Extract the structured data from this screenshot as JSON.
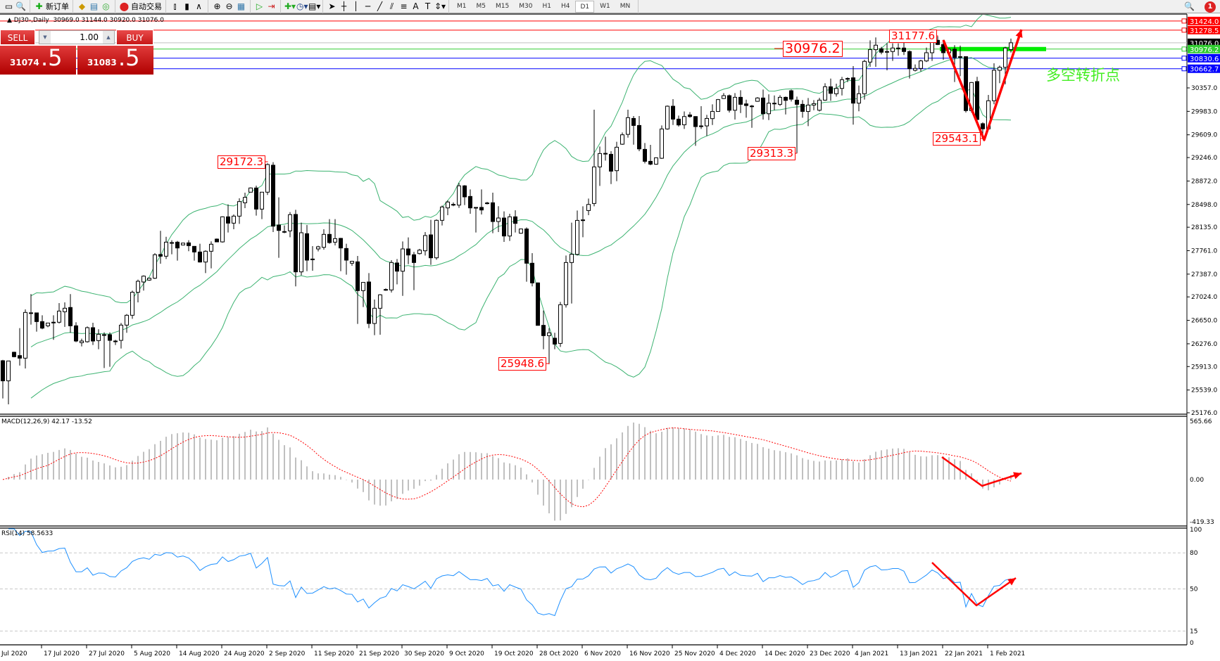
{
  "toolbar": {
    "new_order": "新订单",
    "auto_trading": "自动交易",
    "timeframes": [
      "M1",
      "M5",
      "M15",
      "M30",
      "H1",
      "H4",
      "D1",
      "W1",
      "MN"
    ],
    "active_timeframe": "D1",
    "notification_count": "1"
  },
  "header": {
    "symbol": "DJ30-,Daily",
    "open": "30969.0",
    "high": "31144.0",
    "low": "30920.0",
    "close": "31076.0"
  },
  "trade_panel": {
    "sell_label": "SELL",
    "buy_label": "BUY",
    "lot": "1.00",
    "sell_price_main": "31074",
    "sell_price_pip": ".5",
    "buy_price_main": "31083",
    "buy_price_pip": ".5"
  },
  "annotations": {
    "label_29172": "29172.3",
    "label_25948": "25948.6",
    "label_30976": "30976.2",
    "label_31177": "31177.6",
    "label_29313": "29313.3",
    "label_29543": "29543.1",
    "turning_point_text": "多空转折点"
  },
  "price_lines": [
    {
      "value": "31424.0",
      "color": "#ff0000"
    },
    {
      "value": "31278.5",
      "color": "#ff0000"
    },
    {
      "value": "31076.0",
      "color": "#c0c0c0",
      "tag": "#000000"
    },
    {
      "value": "30976.2",
      "color": "#32cd32"
    },
    {
      "value": "30830.6",
      "color": "#0000ff"
    },
    {
      "value": "30662.7",
      "color": "#0000ff"
    }
  ],
  "macd": {
    "title": "MACD(12,26,9) 42.17 -13.52",
    "axis": [
      "565.66",
      "0.00",
      "-419.33"
    ]
  },
  "rsi": {
    "title": "RSI(14) 58.5633",
    "axis": [
      "100",
      "80",
      "50",
      "15",
      "0"
    ]
  },
  "chart_data": {
    "type": "candlestick",
    "symbol": "DJ30-",
    "timeframe": "Daily",
    "y_ticks": [
      "30357.0",
      "29983.0",
      "29609.0",
      "29246.0",
      "28872.0",
      "28498.0",
      "28135.0",
      "27761.0",
      "27387.0",
      "27024.0",
      "26650.0",
      "26276.0",
      "25913.0",
      "25539.0",
      "25176.0"
    ],
    "x_ticks": [
      "Jul 2020",
      "17 Jul 2020",
      "27 Jul 2020",
      "5 Aug 2020",
      "14 Aug 2020",
      "24 Aug 2020",
      "2 Sep 2020",
      "11 Sep 2020",
      "21 Sep 2020",
      "30 Sep 2020",
      "9 Oct 2020",
      "19 Oct 2020",
      "28 Oct 2020",
      "6 Nov 2020",
      "16 Nov 2020",
      "25 Nov 2020",
      "4 Dec 2020",
      "14 Dec 2020",
      "23 Dec 2020",
      "4 Jan 2021",
      "13 Jan 2021",
      "22 Jan 2021",
      "1 Feb 2021"
    ],
    "indicators": [
      "Bollinger Bands(20,2)",
      "MACD(12,26,9)",
      "RSI(14)"
    ],
    "colors": {
      "bands": "#3cb371",
      "macd_hist": "#c0c0c0",
      "macd_signal": "#ff0000",
      "rsi": "#1e90ff",
      "annotation": "#ff0000"
    },
    "candles_ohlc": [
      [
        26006,
        26020,
        25404,
        25685
      ],
      [
        25685,
        26002,
        25311,
        26002
      ],
      [
        26141,
        26150,
        26060,
        26070
      ],
      [
        26088,
        26526,
        25928,
        26047
      ],
      [
        26047,
        26825,
        25883,
        26776
      ],
      [
        26770,
        27068,
        26582,
        26770
      ],
      [
        26769,
        26769,
        26470,
        26630
      ],
      [
        26630,
        26731,
        26507,
        26526
      ],
      [
        26563,
        26610,
        26540,
        26607
      ],
      [
        26620,
        26731,
        26339,
        26620
      ],
      [
        26620,
        26925,
        26600,
        26798
      ],
      [
        26787,
        26937,
        26545,
        26843
      ],
      [
        26855,
        27068,
        26451,
        26563
      ],
      [
        26563,
        26620,
        26301,
        26320
      ],
      [
        26294,
        26357,
        26234,
        26320
      ],
      [
        26309,
        26552,
        26294,
        26533
      ],
      [
        26533,
        26612,
        26256,
        26320
      ],
      [
        26327,
        26507,
        26189,
        26428
      ],
      [
        26421,
        26458,
        25890,
        26421
      ],
      [
        26421,
        26458,
        25909,
        26331
      ],
      [
        26320,
        26339,
        26256,
        26320
      ],
      [
        26331,
        26608,
        26200,
        26574
      ],
      [
        26574,
        26750,
        26451,
        26731
      ],
      [
        26731,
        27124,
        26675,
        27098
      ],
      [
        27098,
        27299,
        26937,
        27273
      ],
      [
        27262,
        27367,
        27124,
        27355
      ],
      [
        27292,
        27330,
        27280,
        27322
      ],
      [
        27322,
        27722,
        27310,
        27696
      ],
      [
        27700,
        28077,
        27554,
        27673
      ],
      [
        27673,
        27983,
        27628,
        27897
      ],
      [
        27890,
        27927,
        27703,
        27890
      ],
      [
        27897,
        27916,
        27602,
        27804
      ],
      [
        27852,
        27890,
        27845,
        27882
      ],
      [
        27886,
        27927,
        27752,
        27841
      ],
      [
        27830,
        27835,
        27602,
        27740
      ],
      [
        27740,
        27871,
        27572,
        27580
      ],
      [
        27580,
        27767,
        27404,
        27752
      ],
      [
        27752,
        27909,
        27479,
        27864
      ],
      [
        27946,
        27955,
        27895,
        27901
      ],
      [
        27901,
        28309,
        27890,
        28301
      ],
      [
        28301,
        28499,
        28051,
        28200
      ],
      [
        28200,
        28338,
        28103,
        28312
      ],
      [
        28312,
        28596,
        28189,
        28544
      ],
      [
        28525,
        28686,
        28439,
        28611
      ],
      [
        28694,
        28770,
        28690,
        28761
      ],
      [
        28761,
        28798,
        28320,
        28424
      ],
      [
        28424,
        28694,
        28264,
        28694
      ],
      [
        28694,
        29154,
        28649,
        29135
      ],
      [
        29124,
        29172,
        28058,
        28152
      ],
      [
        28170,
        28612,
        27647,
        28084
      ],
      [
        28066,
        28163,
        28040,
        28066
      ],
      [
        28077,
        28376,
        27976,
        28335
      ],
      [
        28339,
        28413,
        27191,
        27423
      ],
      [
        27423,
        28208,
        27367,
        28047
      ],
      [
        28032,
        28170,
        27434,
        27610
      ],
      [
        27628,
        27834,
        27441,
        27628
      ],
      [
        27789,
        27840,
        27750,
        27823
      ],
      [
        27815,
        28103,
        27778,
        28021
      ],
      [
        28021,
        28264,
        27871,
        27890
      ],
      [
        27897,
        28264,
        27845,
        27953
      ],
      [
        27957,
        27965,
        27434,
        27804
      ],
      [
        27796,
        27871,
        27378,
        27610
      ],
      [
        27561,
        27600,
        27520,
        27591
      ],
      [
        27583,
        27677,
        26593,
        27124
      ],
      [
        27124,
        27260,
        26862,
        27255
      ],
      [
        27262,
        27404,
        26526,
        26600
      ],
      [
        26600,
        26982,
        26413,
        26843
      ],
      [
        26843,
        27068,
        26421,
        27057
      ],
      [
        27142,
        27160,
        27120,
        27142
      ],
      [
        27135,
        27610,
        27094,
        27572
      ],
      [
        27565,
        27628,
        27224,
        27434
      ],
      [
        27434,
        27908,
        27041,
        27789
      ],
      [
        27789,
        27972,
        27546,
        27692
      ],
      [
        27696,
        27741,
        27131,
        27572
      ],
      [
        27714,
        27790,
        27700,
        27770
      ],
      [
        27759,
        28058,
        27684,
        28002
      ],
      [
        28013,
        28253,
        27535,
        27647
      ],
      [
        27647,
        28260,
        27617,
        28245
      ],
      [
        28245,
        28480,
        28163,
        28458
      ],
      [
        28443,
        28563,
        28327,
        28537
      ],
      [
        28499,
        28530,
        28470,
        28499
      ],
      [
        28488,
        28843,
        28443,
        28795
      ],
      [
        28795,
        28806,
        28488,
        28619
      ],
      [
        28626,
        28738,
        28350,
        28443
      ],
      [
        28451,
        28455,
        28051,
        28451
      ],
      [
        28451,
        28738,
        28338,
        28410
      ],
      [
        28522,
        28540,
        28500,
        28522
      ],
      [
        28525,
        28686,
        28040,
        28226
      ],
      [
        28226,
        28470,
        28058,
        28282
      ],
      [
        28282,
        28387,
        27901,
        27995
      ],
      [
        27995,
        28350,
        27916,
        28301
      ],
      [
        28301,
        28406,
        28051,
        28196
      ],
      [
        28040,
        28115,
        28030,
        28107
      ],
      [
        28107,
        28133,
        27266,
        27561
      ],
      [
        27561,
        27722,
        27191,
        27247
      ],
      [
        27247,
        27255,
        26565,
        26570
      ],
      [
        26570,
        26806,
        26189,
        26406
      ],
      [
        26406,
        26526,
        25949,
        26451
      ],
      [
        26365,
        26451,
        26189,
        26271
      ],
      [
        26282,
        26944,
        26226,
        26899
      ],
      [
        26899,
        27684,
        26854,
        27572
      ],
      [
        27572,
        28208,
        26918,
        27703
      ],
      [
        27702,
        28401,
        27684,
        28244
      ],
      [
        28252,
        28469,
        27975,
        28252
      ],
      [
        28401,
        28592,
        28327,
        28498
      ],
      [
        28514,
        30009,
        28469,
        29097
      ],
      [
        29097,
        29422,
        28794,
        29310
      ],
      [
        29313,
        29579,
        29198,
        29313
      ],
      [
        29298,
        29347,
        28824,
        29029
      ],
      [
        29037,
        29497,
        28869,
        29411
      ],
      [
        29459,
        29646,
        29448,
        29609
      ],
      [
        29616,
        30009,
        29564,
        29882
      ],
      [
        29870,
        29908,
        29452,
        29758
      ],
      [
        29758,
        29908,
        29347,
        29384
      ],
      [
        29377,
        29478,
        29153,
        29186
      ],
      [
        29186,
        29448,
        29123,
        29141
      ],
      [
        29141,
        29250,
        29130,
        29242
      ],
      [
        29235,
        29758,
        29224,
        29702
      ],
      [
        29702,
        30076,
        29690,
        30065
      ],
      [
        30065,
        30177,
        29766,
        29859
      ],
      [
        29859,
        29915,
        29740,
        29766
      ],
      [
        29769,
        29982,
        29702,
        29900
      ],
      [
        29926,
        29971,
        29882,
        29900
      ],
      [
        29900,
        29905,
        29433,
        29740
      ],
      [
        29751,
        30065,
        29702,
        29751
      ],
      [
        29751,
        29926,
        29590,
        29870
      ],
      [
        29867,
        30095,
        29766,
        29982
      ],
      [
        29982,
        30180,
        29975,
        30170
      ],
      [
        30188,
        30274,
        30180,
        30233
      ],
      [
        30233,
        30252,
        29964,
        30001
      ],
      [
        30001,
        30274,
        29852,
        30207
      ],
      [
        30207,
        30319,
        29956,
        30095
      ],
      [
        30102,
        30169,
        29882,
        30076
      ],
      [
        30068,
        30085,
        29721,
        30068
      ],
      [
        30143,
        30210,
        30135,
        30196
      ],
      [
        30196,
        30330,
        29852,
        29945
      ],
      [
        29945,
        30255,
        29844,
        30113
      ],
      [
        30113,
        30236,
        30001,
        30113
      ],
      [
        30095,
        30240,
        30070,
        30207
      ],
      [
        30207,
        30220,
        29934,
        30158
      ],
      [
        30312,
        30330,
        30140,
        30177
      ],
      [
        30162,
        30218,
        29313,
        30095
      ],
      [
        30095,
        30162,
        29882,
        29982
      ],
      [
        29982,
        30196,
        29747,
        30083
      ],
      [
        30083,
        30162,
        30001,
        30106
      ],
      [
        30001,
        30199,
        29982,
        30162
      ],
      [
        30162,
        30431,
        30151,
        30375
      ],
      [
        30375,
        30506,
        30151,
        30270
      ],
      [
        30263,
        30424,
        30218,
        30349
      ],
      [
        30349,
        30532,
        30237,
        30487
      ],
      [
        30507,
        30525,
        30450,
        30507
      ],
      [
        30518,
        30705,
        29771,
        30114
      ],
      [
        30114,
        30395,
        29984,
        30264
      ],
      [
        30264,
        30806,
        30171,
        30780
      ],
      [
        30769,
        31116,
        30694,
        30967
      ],
      [
        30967,
        31161,
        30694,
        31038
      ],
      [
        30982,
        31012,
        30892,
        30926
      ],
      [
        30937,
        31068,
        30638,
        30937
      ],
      [
        30937,
        31068,
        30787,
        30993
      ],
      [
        30993,
        31068,
        30870,
        30993
      ],
      [
        30993,
        31124,
        30881,
        30937
      ],
      [
        30937,
        30956,
        30507,
        30664
      ],
      [
        30638,
        30731,
        30619,
        30668
      ],
      [
        30668,
        30806,
        30619,
        30787
      ],
      [
        30787,
        31000,
        30769,
        30918
      ],
      [
        30918,
        31160,
        30787,
        31116
      ],
      [
        31116,
        31178,
        31040,
        31049
      ],
      [
        31049,
        31124,
        30806,
        30918
      ],
      [
        30918,
        30990,
        30900,
        30974
      ],
      [
        30974,
        31038,
        30451,
        30843
      ],
      [
        30855,
        31031,
        30544,
        30855
      ],
      [
        30855,
        30862,
        29965,
        29995
      ],
      [
        29995,
        30450,
        29965,
        30443
      ],
      [
        30458,
        30533,
        29834,
        29853
      ],
      [
        29786,
        29808,
        29543,
        29704
      ],
      [
        29704,
        30245,
        29690,
        30152
      ],
      [
        30152,
        30750,
        30096,
        30638
      ],
      [
        30638,
        30713,
        30432,
        30686
      ],
      [
        30686,
        31012,
        30414,
        30993
      ],
      [
        30969,
        31144,
        30920,
        31076
      ]
    ]
  }
}
